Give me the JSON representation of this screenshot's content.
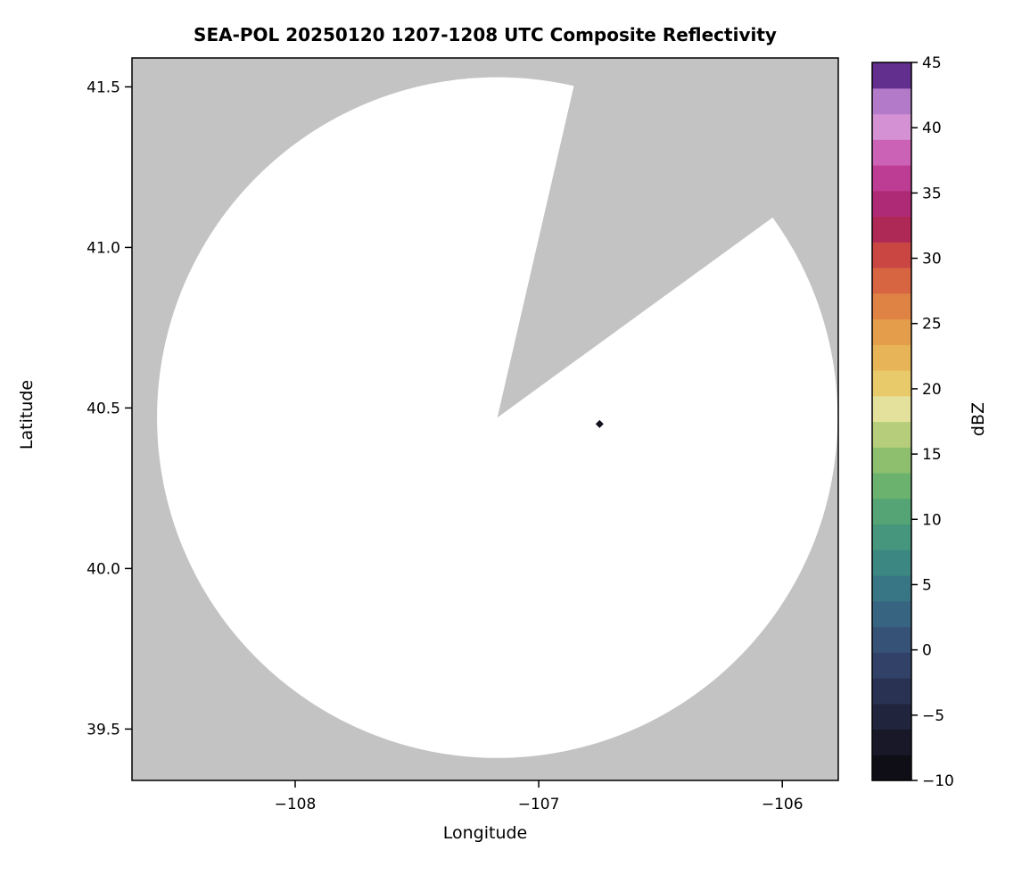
{
  "figure": {
    "background": "#ffffff"
  },
  "chart_data": {
    "type": "heatmap",
    "variant": "radar-ppi-composite-reflectivity",
    "title": "SEA-POL 20250120 1207-1208 UTC Composite Reflectivity",
    "xlabel": "Longitude",
    "ylabel": "Latitude",
    "xlim": [
      -108.67,
      -105.77
    ],
    "ylim": [
      39.34,
      41.59
    ],
    "xticks": [
      -108,
      -107,
      -106
    ],
    "xtick_labels": [
      "−108",
      "−107",
      "−106"
    ],
    "yticks": [
      39.5,
      40.0,
      40.5,
      41.0,
      41.5
    ],
    "ytick_labels": [
      "39.5",
      "40.0",
      "40.5",
      "41.0",
      "41.5"
    ],
    "grid": false,
    "masked_region_color": "#c3c3c3",
    "coverage_color": "#ffffff",
    "radar": {
      "center_lon": -107.17,
      "center_lat": 40.47,
      "range_deg_lat": 1.06,
      "blocked_sector_azimuth_deg": [
        13,
        54
      ]
    },
    "echoes": [
      {
        "lon": -106.75,
        "lat": 40.45,
        "marker": "diamond",
        "color": "#15101c"
      }
    ],
    "colorbar": {
      "label": "dBZ",
      "min": -10,
      "max": 45,
      "ticks": [
        -10,
        -5,
        0,
        5,
        10,
        15,
        20,
        25,
        30,
        35,
        40,
        45
      ],
      "tick_labels": [
        "−10",
        "−5",
        "0",
        "5",
        "10",
        "15",
        "20",
        "25",
        "30",
        "35",
        "40",
        "45"
      ],
      "bands": 28,
      "stops": [
        {
          "value": -10,
          "color": "#0a090d"
        },
        {
          "value": -8,
          "color": "#141320"
        },
        {
          "value": -6,
          "color": "#1d1e33"
        },
        {
          "value": -4,
          "color": "#262b49"
        },
        {
          "value": -2,
          "color": "#2f3a5f"
        },
        {
          "value": 0,
          "color": "#354a71"
        },
        {
          "value": 2,
          "color": "#375d7e"
        },
        {
          "value": 4,
          "color": "#387085"
        },
        {
          "value": 6,
          "color": "#3b8184"
        },
        {
          "value": 8,
          "color": "#41917e"
        },
        {
          "value": 10,
          "color": "#4da077"
        },
        {
          "value": 12,
          "color": "#63ae70"
        },
        {
          "value": 14,
          "color": "#83bb6d"
        },
        {
          "value": 16,
          "color": "#a9c873"
        },
        {
          "value": 18,
          "color": "#dcdf95"
        },
        {
          "value": 19,
          "color": "#ece4a4"
        },
        {
          "value": 20,
          "color": "#e9cf6e"
        },
        {
          "value": 22,
          "color": "#e7b95a"
        },
        {
          "value": 24,
          "color": "#e5a24c"
        },
        {
          "value": 26,
          "color": "#e08845"
        },
        {
          "value": 28,
          "color": "#d96a42"
        },
        {
          "value": 30,
          "color": "#cd4b41"
        },
        {
          "value": 31,
          "color": "#c03a47"
        },
        {
          "value": 32,
          "color": "#b02a52"
        },
        {
          "value": 33,
          "color": "#a62460"
        },
        {
          "value": 35,
          "color": "#b52e85"
        },
        {
          "value": 37,
          "color": "#c2479f"
        },
        {
          "value": 38,
          "color": "#ca5fb4"
        },
        {
          "value": 40,
          "color": "#d48fd2"
        },
        {
          "value": 41,
          "color": "#d2a3dd"
        },
        {
          "value": 42,
          "color": "#b47cc9"
        },
        {
          "value": 43,
          "color": "#9257b4"
        },
        {
          "value": 44,
          "color": "#63308f"
        },
        {
          "value": 45,
          "color": "#2e1240"
        }
      ]
    }
  }
}
